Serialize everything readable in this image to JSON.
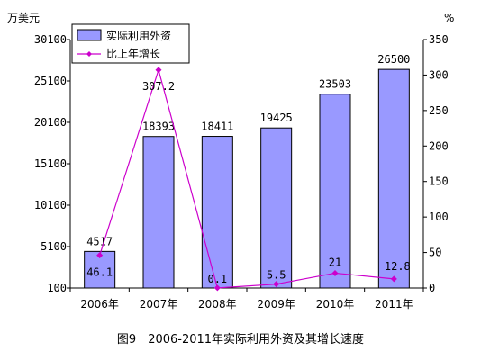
{
  "chart_data": {
    "type": "bar",
    "title": "",
    "caption": "图9　2006-2011年实际利用外资及其增长速度",
    "y_left_unit": "万美元",
    "y_right_unit": "%",
    "categories": [
      "2006年",
      "2007年",
      "2008年",
      "2009年",
      "2010年",
      "2011年"
    ],
    "y_left": {
      "min": 100,
      "max": 30100,
      "ticks": [
        "30100",
        "25100",
        "20100",
        "15100",
        "10100",
        "5100",
        "100"
      ]
    },
    "y_right": {
      "min": 0,
      "max": 350,
      "ticks": [
        "350",
        "300",
        "250",
        "200",
        "150",
        "100",
        "50",
        "0"
      ]
    },
    "series": [
      {
        "name": "实际利用外资",
        "type": "bar",
        "axis": "left",
        "color": "#9999ff",
        "values": [
          4517,
          18393,
          18411,
          19425,
          23503,
          26500
        ],
        "labels": [
          "4517",
          "18393",
          "18411",
          "19425",
          "23503",
          "26500"
        ]
      },
      {
        "name": "比上年增长",
        "type": "line",
        "axis": "right",
        "color": "#cc00cc",
        "values": [
          46.1,
          307.2,
          0.1,
          5.5,
          21,
          12.8
        ],
        "labels": [
          "46.1",
          "307.2",
          "0.1",
          "5.5",
          "21",
          "12.8"
        ]
      }
    ],
    "legend_position": "top-left",
    "grid": false
  }
}
